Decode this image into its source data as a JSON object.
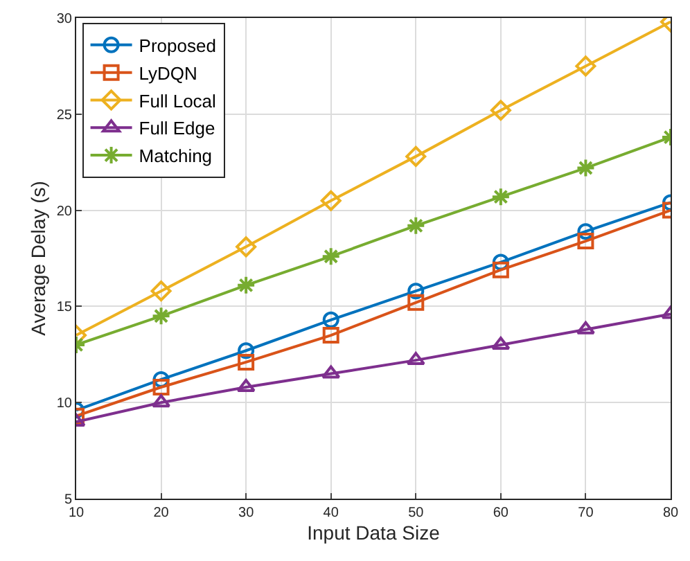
{
  "chart_data": {
    "type": "line",
    "xlabel": "Input Data Size",
    "ylabel": "Average Delay (s)",
    "x": [
      10,
      20,
      30,
      40,
      50,
      60,
      70,
      80
    ],
    "series": [
      {
        "name": "Proposed",
        "color": "#0072bd",
        "marker": "circle",
        "values": [
          9.6,
          11.2,
          12.7,
          14.3,
          15.8,
          17.3,
          18.9,
          20.4
        ]
      },
      {
        "name": "LyDQN",
        "color": "#d95319",
        "marker": "square",
        "values": [
          9.3,
          10.8,
          12.1,
          13.5,
          15.2,
          16.9,
          18.4,
          20.0
        ]
      },
      {
        "name": "Full Local",
        "color": "#edb120",
        "marker": "diamond",
        "values": [
          13.5,
          15.8,
          18.1,
          20.5,
          22.8,
          25.2,
          27.5,
          29.8
        ]
      },
      {
        "name": "Full Edge",
        "color": "#7e2f8e",
        "marker": "triangle",
        "values": [
          9.0,
          10.0,
          10.8,
          11.5,
          12.2,
          13.0,
          13.8,
          14.6
        ]
      },
      {
        "name": "Matching",
        "color": "#77ac30",
        "marker": "cross",
        "values": [
          13.0,
          14.5,
          16.1,
          17.6,
          19.2,
          20.7,
          22.2,
          23.8
        ]
      }
    ],
    "xlim": [
      10,
      80
    ],
    "xticks": [
      10,
      20,
      30,
      40,
      50,
      60,
      70,
      80
    ],
    "ylim": [
      5,
      30
    ],
    "yticks": [
      5,
      10,
      15,
      20,
      25,
      30
    ],
    "grid": true,
    "legend": "top left",
    "line_style": "solid"
  }
}
